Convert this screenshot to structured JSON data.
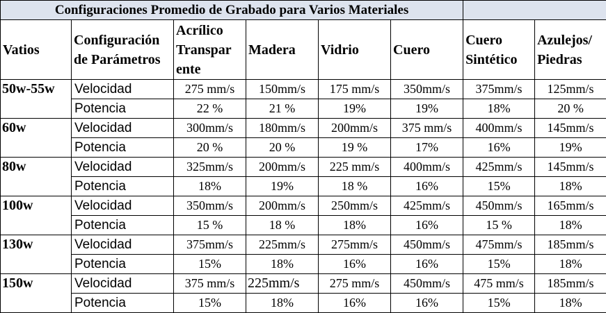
{
  "title": "Configuraciones Promedio de Grabado para Varios Materiales",
  "headers": {
    "vatios": "Vatios",
    "config": "Configuración de Parámetros",
    "materials": [
      "Acrílico Transparente",
      "Madera",
      "Vidrio",
      "Cuero",
      "Cuero Sintético",
      "Azulejos/ Piedras"
    ]
  },
  "header_display": {
    "acrilico_lines": [
      "Acrílico",
      "Transpar",
      "ente"
    ],
    "config_lines": [
      "Configuración",
      "de Parámetros"
    ],
    "cuero_sint_lines": [
      "Cuero",
      "Sintético"
    ],
    "azulejos_lines": [
      "Azulejos/",
      "Piedras"
    ]
  },
  "rows": [
    {
      "watts": "50w-55w",
      "speed_label": "Velocidad",
      "power_label": "Potencia",
      "speed": [
        "275 mm/s",
        "150mm/s",
        "175 mm/s",
        "350mm/s",
        "375mm/s",
        "125mm/s"
      ],
      "power": [
        "22 %",
        "21 %",
        "19%",
        "19%",
        "18%",
        "20 %"
      ]
    },
    {
      "watts": "60w",
      "speed_label": "Velocidad",
      "power_label": "Potencia",
      "speed": [
        "300mm/s",
        "180mm/s",
        "200mm/s",
        "375 mm/s",
        "400mm/s",
        "145mm/s"
      ],
      "power": [
        "20 %",
        "20 %",
        "19 %",
        "17%",
        "16%",
        "19%"
      ]
    },
    {
      "watts": "80w",
      "speed_label": "Velocidad",
      "power_label": "Potencia",
      "speed": [
        "325mm/s",
        "200mm/s",
        "225 mm/s",
        "400mm/s",
        "425mm/s",
        "145mm/s"
      ],
      "power": [
        "18%",
        "19%",
        "18 %",
        "16%",
        "15%",
        "18%"
      ]
    },
    {
      "watts": "100w",
      "speed_label": "Velocidad",
      "power_label": "Potencia",
      "speed": [
        "350mm/s",
        "200mm/s",
        "250mm/s",
        "425mm/s",
        "450mm/s",
        "165mm/s"
      ],
      "power": [
        "15 %",
        "18 %",
        "18%",
        "16%",
        "15 %",
        "18%"
      ]
    },
    {
      "watts": "130w",
      "speed_label": "Velocidad",
      "power_label": "Potencia",
      "speed": [
        "375mm/s",
        "225mm/s",
        "275mm/s",
        "450mm/s",
        "475mm/s",
        "185mm/s"
      ],
      "power": [
        "15%",
        "18%",
        "16%",
        "16%",
        "15%",
        "18%"
      ]
    },
    {
      "watts": "150w",
      "speed_label": "Velocidad",
      "power_label": "Potencia",
      "speed": [
        "375 mm/s",
        "225mm/s",
        "275 mm/s",
        "450mm/s",
        "475 mm/s",
        "185mm/s"
      ],
      "power": [
        "15%",
        "18%",
        "16%",
        "16%",
        "15%",
        "18%"
      ]
    }
  ]
}
